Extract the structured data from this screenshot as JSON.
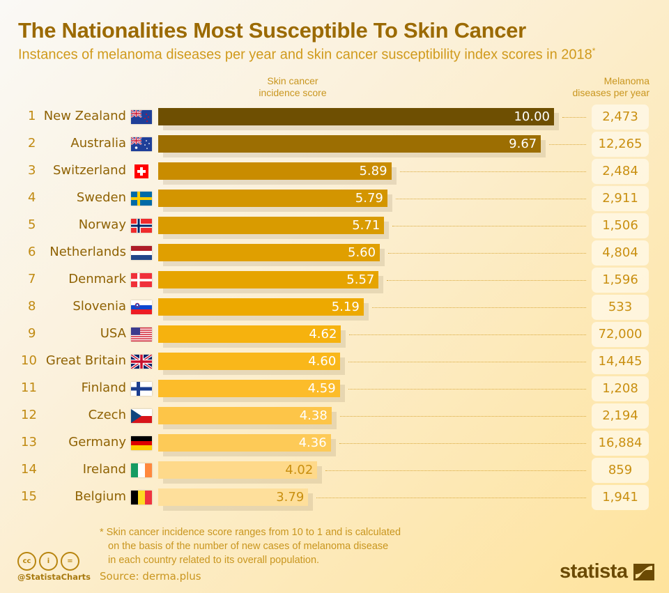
{
  "header": {
    "title": "The Nationalities Most Susceptible To Skin Cancer",
    "subtitle": "Instances of melanoma diseases per year and skin cancer susceptibility index scores in 2018",
    "subtitle_mark": "*"
  },
  "columns": {
    "score_line1": "Skin cancer",
    "score_line2": "incidence score",
    "melanoma_line1": "Melanoma",
    "melanoma_line2": "diseases per year"
  },
  "chart_data": {
    "type": "bar",
    "orientation": "horizontal",
    "title": "The Nationalities Most Susceptible To Skin Cancer",
    "subtitle": "Instances of melanoma diseases per year and skin cancer susceptibility index scores in 2018*",
    "xlabel": "Skin cancer incidence score",
    "ylabel": "",
    "xlim": [
      0,
      10
    ],
    "grid": false,
    "legend": "none",
    "ranks": [
      1,
      2,
      3,
      4,
      5,
      6,
      7,
      8,
      9,
      10,
      11,
      12,
      13,
      14,
      15
    ],
    "categories": [
      "New Zealand",
      "Australia",
      "Switzerland",
      "Sweden",
      "Norway",
      "Netherlands",
      "Denmark",
      "Slovenia",
      "USA",
      "Great Britain",
      "Finland",
      "Czech",
      "Germany",
      "Ireland",
      "Belgium"
    ],
    "flags": [
      "nz-flag-icon",
      "au-flag-icon",
      "ch-flag-icon",
      "se-flag-icon",
      "no-flag-icon",
      "nl-flag-icon",
      "dk-flag-icon",
      "si-flag-icon",
      "us-flag-icon",
      "gb-flag-icon",
      "fi-flag-icon",
      "cz-flag-icon",
      "de-flag-icon",
      "ie-flag-icon",
      "be-flag-icon"
    ],
    "series": [
      {
        "name": "Skin cancer incidence score",
        "values": [
          10.0,
          9.67,
          5.89,
          5.79,
          5.71,
          5.6,
          5.57,
          5.19,
          4.62,
          4.6,
          4.59,
          4.38,
          4.36,
          4.02,
          3.79
        ],
        "labels": [
          "10.00",
          "9.67",
          "5.89",
          "5.79",
          "5.71",
          "5.60",
          "5.57",
          "5.19",
          "4.62",
          "4.60",
          "4.59",
          "4.38",
          "4.36",
          "4.02",
          "3.79"
        ]
      },
      {
        "name": "Melanoma diseases per year",
        "values": [
          2473,
          12265,
          2484,
          2911,
          1506,
          4804,
          1596,
          533,
          72000,
          14445,
          1208,
          2194,
          16884,
          859,
          1941
        ],
        "labels": [
          "2,473",
          "12,265",
          "2,484",
          "2,911",
          "1,506",
          "4,804",
          "1,596",
          "533",
          "72,000",
          "14,445",
          "1,208",
          "2,194",
          "16,884",
          "859",
          "1,941"
        ]
      }
    ],
    "bar_colors": [
      "#6e4f02",
      "#9c6e02",
      "#c98c00",
      "#d39500",
      "#d99b00",
      "#e09f00",
      "#e6a400",
      "#eda900",
      "#f6b20e",
      "#f9b71a",
      "#fcbc2a",
      "#fdc548",
      "#fdca57",
      "#fed98a",
      "#fedf9b"
    ],
    "label_colors": [
      "#ffffff",
      "#ffffff",
      "#ffffff",
      "#ffffff",
      "#ffffff",
      "#ffffff",
      "#ffffff",
      "#ffffff",
      "#ffffff",
      "#ffffff",
      "#ffffff",
      "#ffffff",
      "#ffffff",
      "#c98f10",
      "#c98f10"
    ]
  },
  "footer": {
    "note_line1": "* Skin cancer incidence score ranges from 10 to 1 and is calculated",
    "note_line2": "on the basis of the number of new cases of melanoma disease",
    "note_line3": "in each country related to its overall population.",
    "source": "Source: derma.plus",
    "handle": "@StatistaCharts",
    "cc_icons": [
      "cc-icon",
      "by-icon",
      "nd-icon"
    ],
    "cc_labels": [
      "cc",
      "i",
      "="
    ],
    "logo": "statista"
  }
}
